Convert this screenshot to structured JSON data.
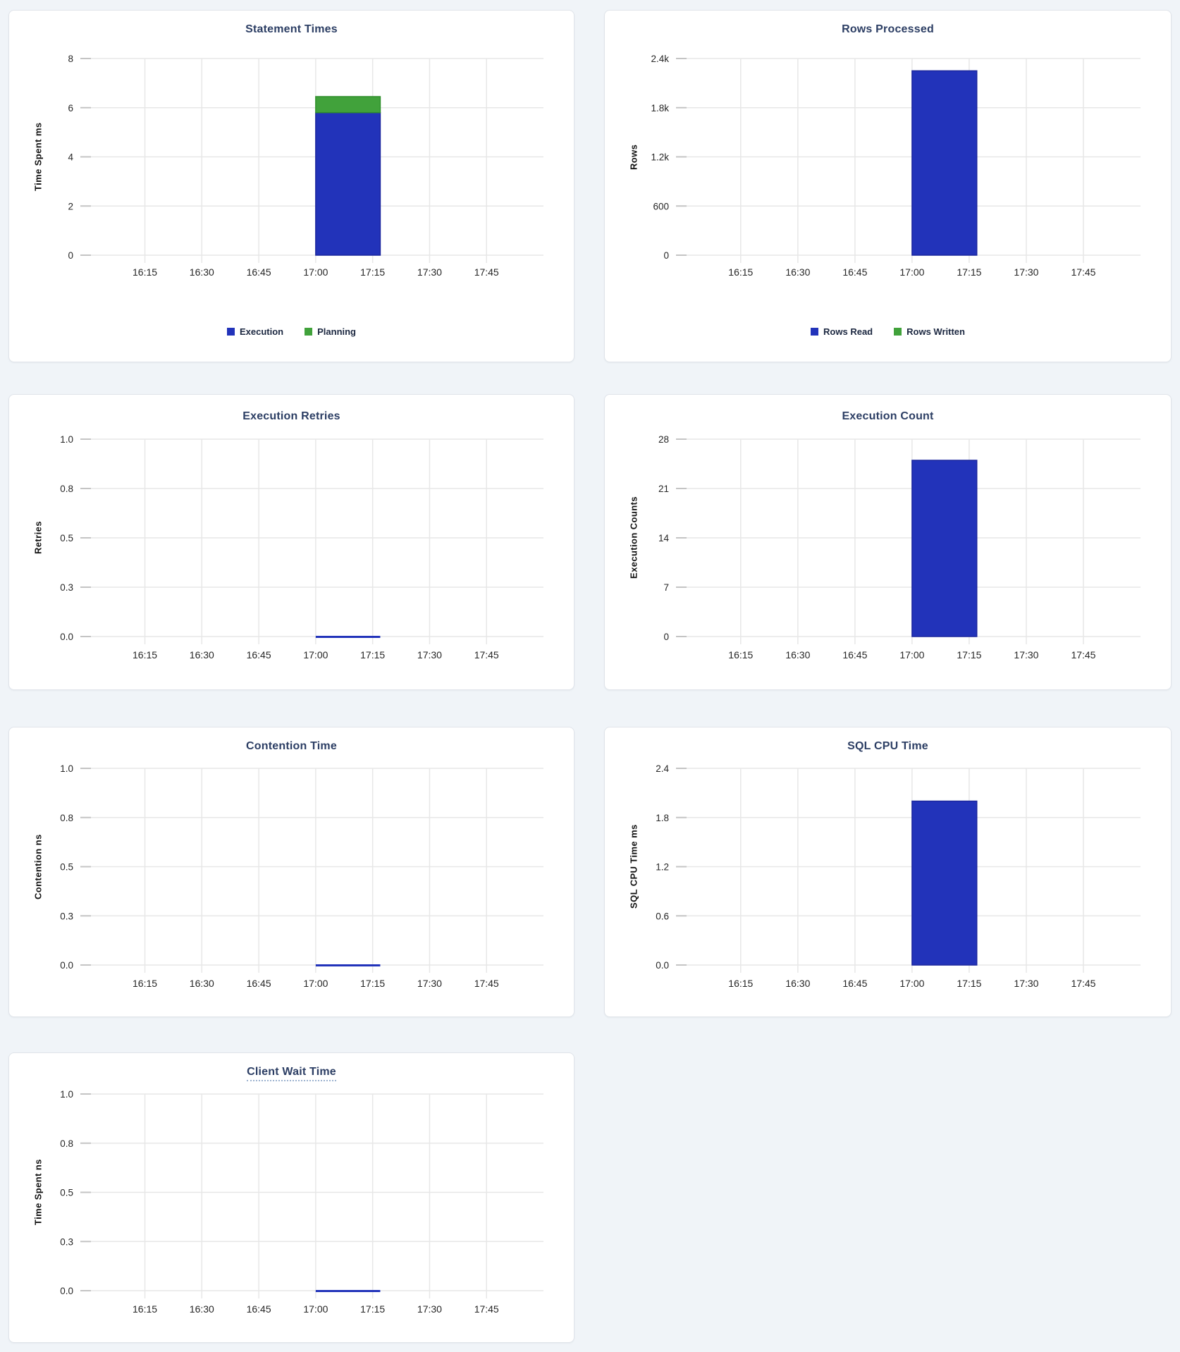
{
  "page": {
    "background": "#f0f4f8"
  },
  "colors": {
    "blue": "#2233ba",
    "blue_stroke": "#1b269e",
    "green": "#41a23b",
    "green_stroke": "#2f8f2b",
    "title_text": "#2c3e64",
    "tick_text": "#262626",
    "gridline": "#e7e7e7",
    "tick_mark": "#c4c4c4",
    "legend_text": "#1b2740"
  },
  "x_axis": {
    "labels": [
      "16:15",
      "16:30",
      "16:45",
      "17:00",
      "17:15",
      "17:30",
      "17:45"
    ],
    "tick_minutes": [
      975,
      990,
      1005,
      1020,
      1035,
      1050,
      1065
    ],
    "domain_minutes": [
      958,
      1080
    ],
    "bar_minutes": [
      1020,
      1037
    ],
    "bar_interval": "17:00 - 17:15"
  },
  "chart_data": [
    {
      "type": "bar",
      "title": "Statement Times",
      "ylabel": "Time Spent ms",
      "ylim": [
        0,
        8
      ],
      "ytick_labels": [
        "0",
        "2",
        "4",
        "6",
        "8"
      ],
      "stacked": true,
      "grid": true,
      "legend_position": "bottom",
      "series": [
        {
          "name": "Execution",
          "color_key": "blue",
          "value": 5.8
        },
        {
          "name": "Planning",
          "color_key": "green",
          "value": 0.65
        }
      ],
      "legend": [
        {
          "label": "Execution",
          "color_key": "blue"
        },
        {
          "label": "Planning",
          "color_key": "green"
        }
      ]
    },
    {
      "type": "bar",
      "title": "Rows Processed",
      "ylabel": "Rows",
      "ylim": [
        0,
        2400
      ],
      "ytick_labels": [
        "0",
        "600",
        "1.2k",
        "1.8k",
        "2.4k"
      ],
      "stacked": true,
      "grid": true,
      "legend_position": "bottom",
      "series": [
        {
          "name": "Rows Read",
          "color_key": "blue",
          "value": 2250
        },
        {
          "name": "Rows Written",
          "color_key": "green",
          "value": 0
        }
      ],
      "legend": [
        {
          "label": "Rows Read",
          "color_key": "blue"
        },
        {
          "label": "Rows Written",
          "color_key": "green"
        }
      ]
    },
    {
      "type": "bar",
      "title": "Execution Retries",
      "ylabel": "Retries",
      "ylim": [
        0,
        1.0
      ],
      "ytick_labels": [
        "0.0",
        "0.3",
        "0.5",
        "0.8",
        "1.0"
      ],
      "stacked": false,
      "grid": true,
      "series": [
        {
          "name": "Retries",
          "color_key": "blue",
          "value": 0
        }
      ],
      "legend": []
    },
    {
      "type": "bar",
      "title": "Execution Count",
      "ylabel": "Execution Counts",
      "ylim": [
        0,
        28
      ],
      "ytick_labels": [
        "0",
        "7",
        "14",
        "21",
        "28"
      ],
      "stacked": false,
      "grid": true,
      "series": [
        {
          "name": "Execution Count",
          "color_key": "blue",
          "value": 25
        }
      ],
      "legend": []
    },
    {
      "type": "bar",
      "title": "Contention Time",
      "ylabel": "Contention ns",
      "ylim": [
        0,
        1.0
      ],
      "ytick_labels": [
        "0.0",
        "0.3",
        "0.5",
        "0.8",
        "1.0"
      ],
      "stacked": false,
      "grid": true,
      "series": [
        {
          "name": "Contention",
          "color_key": "blue",
          "value": 0
        }
      ],
      "legend": []
    },
    {
      "type": "bar",
      "title": "SQL CPU Time",
      "ylabel": "SQL CPU Time ms",
      "ylim": [
        0,
        2.4
      ],
      "ytick_labels": [
        "0.0",
        "0.6",
        "1.2",
        "1.8",
        "2.4"
      ],
      "stacked": false,
      "grid": true,
      "series": [
        {
          "name": "SQL CPU Time",
          "color_key": "blue",
          "value": 2.0
        }
      ],
      "legend": []
    },
    {
      "type": "bar",
      "title": "Client Wait Time",
      "title_has_tooltip_underline": true,
      "ylabel": "Time Spent ns",
      "ylim": [
        0,
        1.0
      ],
      "ytick_labels": [
        "0.0",
        "0.3",
        "0.5",
        "0.8",
        "1.0"
      ],
      "stacked": false,
      "grid": true,
      "series": [
        {
          "name": "Client Wait",
          "color_key": "blue",
          "value": 0
        }
      ],
      "legend": []
    }
  ]
}
